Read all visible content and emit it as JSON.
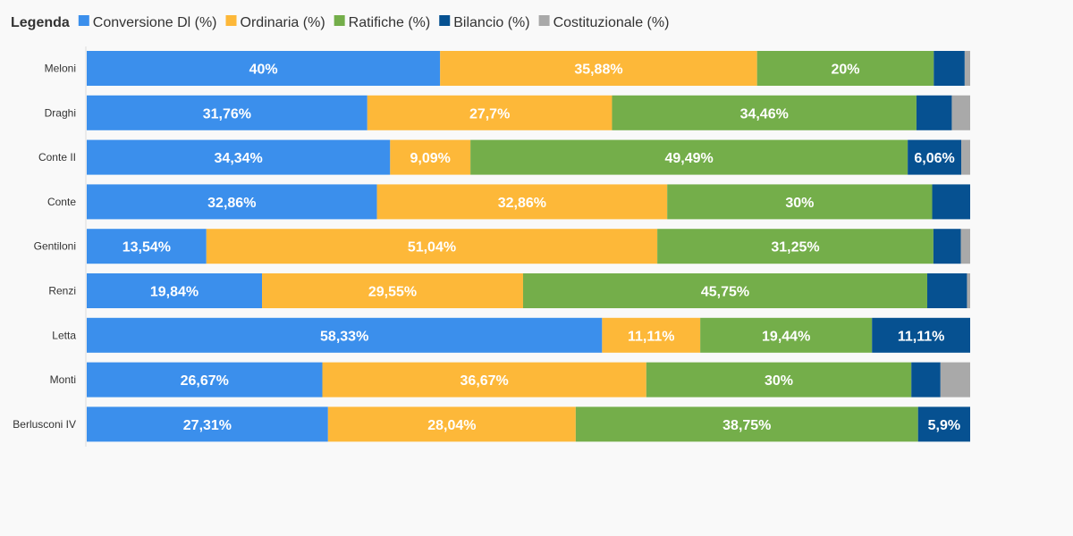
{
  "legend": {
    "title": "Legenda"
  },
  "colors": {
    "Conversione Dl (%)": "#3b8fec",
    "Ordinaria (%)": "#fdb839",
    "Ratifiche (%)": "#74ae4a",
    "Bilancio (%)": "#065191",
    "Costituzionale (%)": "#a9a9a9"
  },
  "chart_data": {
    "type": "bar",
    "orientation": "horizontal",
    "stacked": true,
    "grid": false,
    "legend_position": "top-left",
    "xlim": [
      0,
      100
    ],
    "categories": [
      "Meloni",
      "Draghi",
      "Conte II",
      "Conte",
      "Gentiloni",
      "Renzi",
      "Letta",
      "Monti",
      "Berlusconi IV"
    ],
    "series": [
      {
        "name": "Conversione Dl (%)",
        "values": [
          40,
          31.76,
          34.34,
          32.86,
          13.54,
          19.84,
          58.33,
          26.67,
          27.31
        ],
        "labels": [
          "40%",
          "31,76%",
          "34,34%",
          "32,86%",
          "13,54%",
          "19,84%",
          "58,33%",
          "26,67%",
          "27,31%"
        ]
      },
      {
        "name": "Ordinaria (%)",
        "values": [
          35.88,
          27.7,
          9.09,
          32.86,
          51.04,
          29.55,
          11.11,
          36.67,
          28.04
        ],
        "labels": [
          "35,88%",
          "27,7%",
          "9,09%",
          "32,86%",
          "51,04%",
          "29,55%",
          "11,11%",
          "36,67%",
          "28,04%"
        ]
      },
      {
        "name": "Ratifiche (%)",
        "values": [
          20,
          34.46,
          49.49,
          30,
          31.25,
          45.75,
          19.44,
          30,
          38.75
        ],
        "labels": [
          "20%",
          "34,46%",
          "49,49%",
          "30%",
          "31,25%",
          "45,75%",
          "19,44%",
          "30%",
          "38,75%"
        ]
      },
      {
        "name": "Bilancio (%)",
        "values": [
          3.5,
          4,
          6.06,
          4.3,
          3.1,
          4.5,
          11.11,
          3.3,
          5.9
        ],
        "labels": [
          "",
          "",
          "6,06%",
          "",
          "",
          "",
          "11,11%",
          "",
          "5,9%"
        ]
      },
      {
        "name": "Costituzionale (%)",
        "values": [
          0.62,
          2.08,
          1.01,
          0,
          1.06,
          0.36,
          0,
          3.36,
          0
        ],
        "labels": [
          "",
          "",
          "",
          "",
          "",
          "",
          "",
          "",
          ""
        ]
      }
    ]
  }
}
